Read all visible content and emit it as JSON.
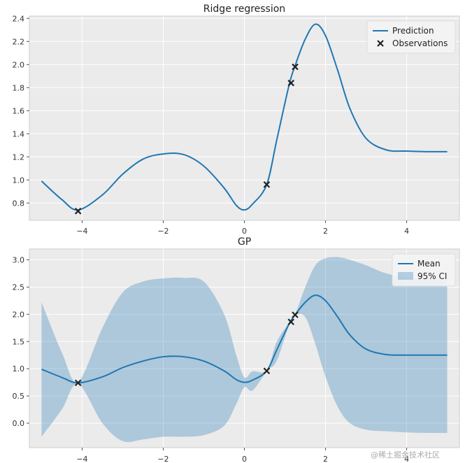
{
  "chart_data": [
    {
      "type": "line",
      "title": "Ridge regression",
      "xlim": [
        -5.3,
        5.3
      ],
      "ylim": [
        0.65,
        2.42
      ],
      "xticks": [
        -4,
        -2,
        0,
        2,
        4
      ],
      "yticks": [
        0.8,
        1.0,
        1.2,
        1.4,
        1.6,
        1.8,
        2.0,
        2.2,
        2.4
      ],
      "xtick_labels": [
        "−4",
        "−2",
        "0",
        "2",
        "4"
      ],
      "ytick_labels": [
        "0.8",
        "1.0",
        "1.2",
        "1.4",
        "1.6",
        "1.8",
        "2.0",
        "2.2",
        "2.4"
      ],
      "grid": true,
      "legend_position": "top-right",
      "series": [
        {
          "name": "Prediction",
          "kind": "line",
          "color": "#1f77b4",
          "x": [
            -5.0,
            -4.5,
            -4.1,
            -3.5,
            -3.0,
            -2.5,
            -2.0,
            -1.5,
            -1.0,
            -0.5,
            -0.2,
            0.0,
            0.2,
            0.55,
            0.8,
            1.1,
            1.25,
            1.5,
            1.75,
            2.0,
            2.3,
            2.6,
            3.0,
            3.5,
            4.0,
            4.5,
            5.0
          ],
          "y": [
            0.99,
            0.83,
            0.74,
            0.87,
            1.05,
            1.18,
            1.225,
            1.22,
            1.12,
            0.93,
            0.78,
            0.74,
            0.79,
            0.96,
            1.35,
            1.82,
            1.99,
            2.22,
            2.35,
            2.25,
            1.95,
            1.62,
            1.36,
            1.26,
            1.25,
            1.245,
            1.245
          ]
        },
        {
          "name": "Observations",
          "kind": "scatter",
          "color": "#222222",
          "marker": "x",
          "x": [
            -4.1,
            0.55,
            1.15,
            1.25
          ],
          "y": [
            0.73,
            0.96,
            1.84,
            1.98
          ]
        }
      ]
    },
    {
      "type": "line",
      "title": "GP",
      "xlim": [
        -5.3,
        5.3
      ],
      "ylim": [
        -0.45,
        3.2
      ],
      "xticks": [
        -4,
        -2,
        0,
        2,
        4
      ],
      "yticks": [
        0.0,
        0.5,
        1.0,
        1.5,
        2.0,
        2.5,
        3.0
      ],
      "xtick_labels": [
        "−4",
        "−2",
        "0",
        "2",
        "4"
      ],
      "ytick_labels": [
        "0.0",
        "0.5",
        "1.0",
        "1.5",
        "2.0",
        "2.5",
        "3.0"
      ],
      "grid": true,
      "legend_position": "top-right",
      "series": [
        {
          "name": "Mean",
          "kind": "line",
          "color": "#1f77b4",
          "x": [
            -5.0,
            -4.5,
            -4.1,
            -3.5,
            -3.0,
            -2.5,
            -2.0,
            -1.5,
            -1.0,
            -0.5,
            -0.2,
            0.0,
            0.2,
            0.55,
            0.8,
            1.1,
            1.25,
            1.5,
            1.75,
            2.0,
            2.3,
            2.6,
            3.0,
            3.5,
            4.0,
            4.5,
            5.0
          ],
          "y": [
            0.99,
            0.84,
            0.74,
            0.85,
            1.02,
            1.14,
            1.22,
            1.22,
            1.14,
            0.96,
            0.8,
            0.75,
            0.79,
            0.96,
            1.35,
            1.82,
            1.99,
            2.22,
            2.35,
            2.25,
            1.95,
            1.62,
            1.36,
            1.26,
            1.25,
            1.25,
            1.25
          ]
        },
        {
          "name": "95% CI",
          "kind": "band",
          "color": "#1f77b4",
          "opacity": 0.3,
          "x": [
            -5.0,
            -4.5,
            -4.1,
            -3.5,
            -3.0,
            -2.5,
            -2.0,
            -1.5,
            -1.0,
            -0.5,
            -0.2,
            0.0,
            0.2,
            0.55,
            0.8,
            1.1,
            1.25,
            1.5,
            1.75,
            2.0,
            2.3,
            2.6,
            3.0,
            3.5,
            4.0,
            4.5,
            5.0
          ],
          "lower": [
            -0.25,
            0.25,
            0.72,
            0.0,
            -0.33,
            -0.3,
            -0.25,
            -0.25,
            -0.22,
            -0.05,
            0.35,
            0.66,
            0.6,
            0.95,
            1.15,
            1.8,
            1.98,
            1.95,
            1.45,
            0.85,
            0.3,
            0.0,
            -0.12,
            -0.15,
            -0.17,
            -0.18,
            -0.18
          ],
          "upper": [
            2.22,
            1.3,
            0.76,
            1.75,
            2.4,
            2.6,
            2.66,
            2.67,
            2.6,
            2.0,
            1.25,
            0.84,
            0.95,
            0.97,
            1.5,
            1.84,
            2.0,
            2.5,
            2.9,
            3.03,
            3.05,
            3.0,
            2.9,
            2.75,
            2.68,
            2.65,
            2.63
          ]
        },
        {
          "name": "Observations",
          "kind": "scatter",
          "color": "#222222",
          "marker": "x",
          "x": [
            -4.1,
            0.55,
            1.15,
            1.25
          ],
          "y": [
            0.74,
            0.96,
            1.86,
            1.99
          ]
        }
      ]
    }
  ],
  "watermark": "@稀土掘金技术社区"
}
